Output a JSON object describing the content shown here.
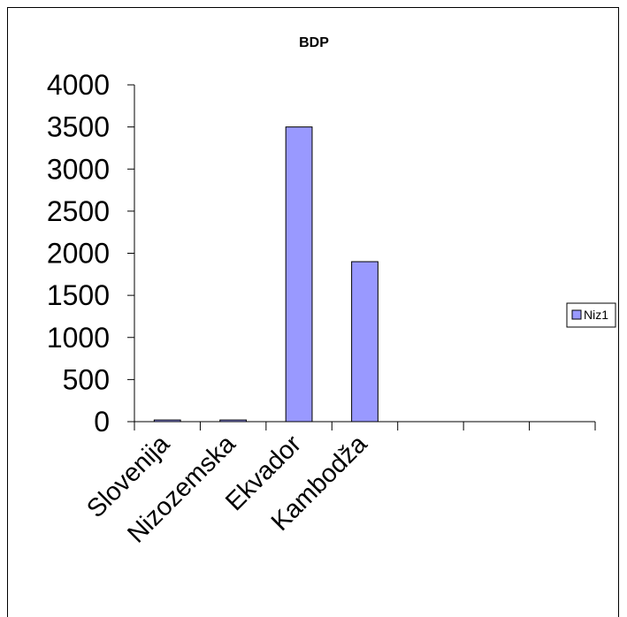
{
  "chart_data": {
    "type": "bar",
    "title": "BDP",
    "categories": [
      "Slovenija",
      "Nizozemska",
      "Ekvador",
      "Kambodža",
      "",
      "",
      ""
    ],
    "series": [
      {
        "name": "Niz1",
        "values": [
          20,
          20,
          3500,
          1900,
          0,
          0,
          0
        ],
        "color": "#9999ff"
      }
    ],
    "yticks": [
      "0",
      "500",
      "1000",
      "1500",
      "2000",
      "2500",
      "3000",
      "3500",
      "4000"
    ],
    "ylim": [
      0,
      4000
    ],
    "grid": false,
    "legend_position": "right"
  }
}
